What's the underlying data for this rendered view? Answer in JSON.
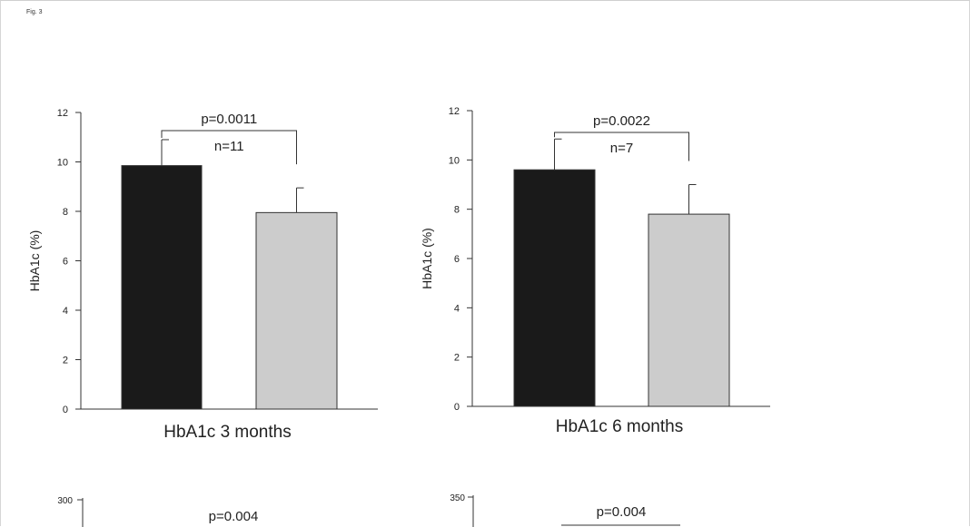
{
  "figure_label": "Fig. 3",
  "chart_data": [
    {
      "type": "bar",
      "title": "HbA1c 3 months",
      "ylabel": "HbA1c (%)",
      "ylim": [
        0,
        12
      ],
      "yticks": [
        0,
        2,
        4,
        6,
        8,
        10,
        12
      ],
      "categories": [
        "",
        ""
      ],
      "values": [
        9.85,
        7.95
      ],
      "errors": [
        1.05,
        1.0
      ],
      "bar_colors": [
        "#1a1a1a",
        "#cccccc"
      ],
      "p_value": "p=0.0011",
      "n_label": "n=11"
    },
    {
      "type": "bar",
      "title": "HbA1c 6 months",
      "ylabel": "HbA1c (%)",
      "ylim": [
        0,
        12
      ],
      "yticks": [
        0,
        2,
        4,
        6,
        8,
        10,
        12
      ],
      "categories": [
        "",
        ""
      ],
      "values": [
        9.6,
        7.8
      ],
      "errors": [
        1.25,
        1.2
      ],
      "bar_colors": [
        "#1a1a1a",
        "#cccccc"
      ],
      "p_value": "p=0.0022",
      "n_label": "n=7"
    },
    {
      "type": "bar",
      "partial": true,
      "yticks_visible": [
        300
      ],
      "p_value": "p=0.004"
    },
    {
      "type": "bar",
      "partial": true,
      "yticks_visible": [
        350
      ],
      "p_value": "p=0.004"
    }
  ]
}
